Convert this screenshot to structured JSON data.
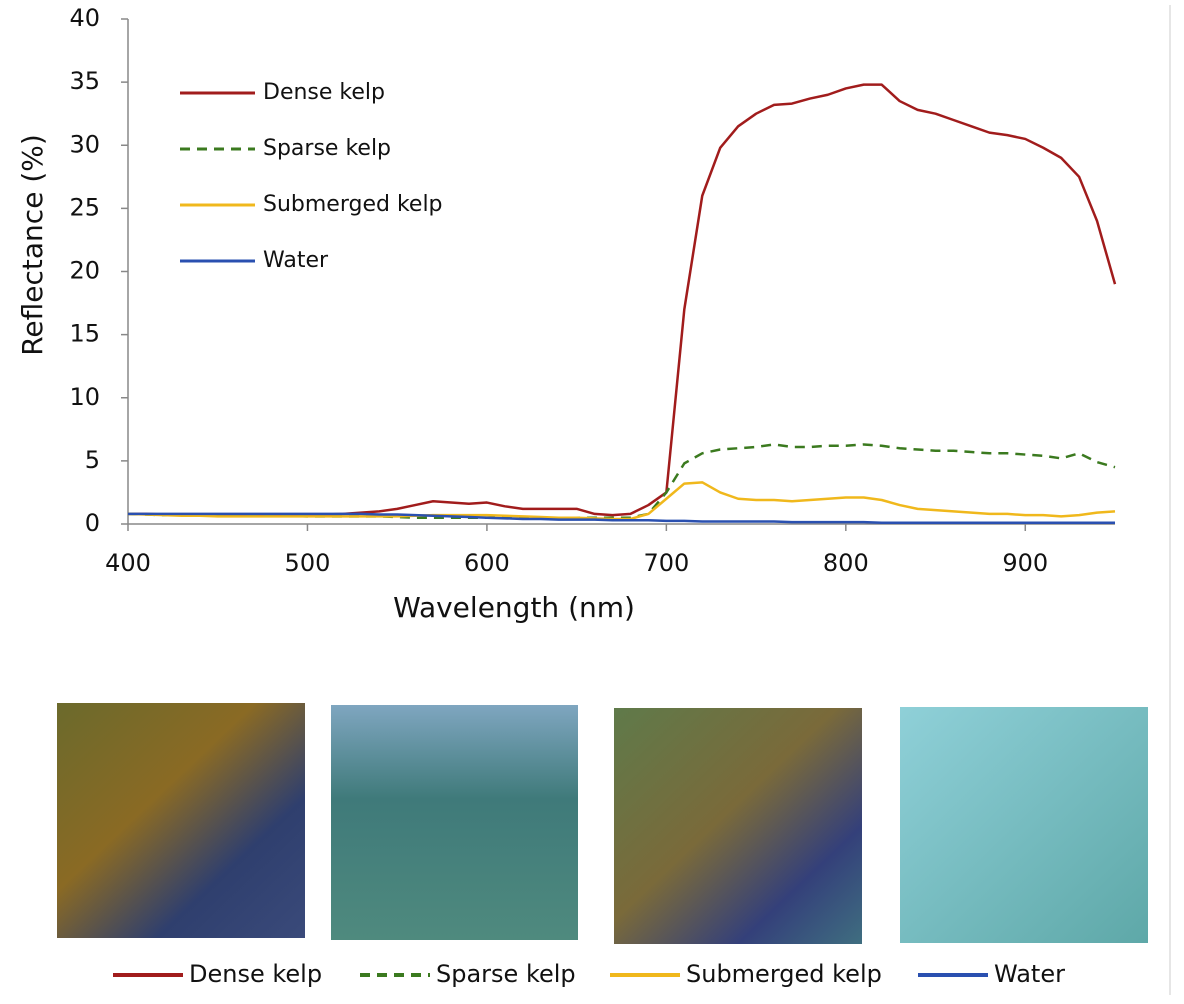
{
  "chart_data": {
    "type": "line",
    "x_label": "Wavelength (nm)",
    "y_label": "Reflectance (%)",
    "x": [
      400,
      410,
      420,
      430,
      440,
      450,
      460,
      470,
      480,
      490,
      500,
      510,
      520,
      530,
      540,
      550,
      560,
      570,
      580,
      590,
      600,
      610,
      620,
      630,
      640,
      650,
      660,
      670,
      680,
      690,
      700,
      710,
      720,
      730,
      740,
      750,
      760,
      770,
      780,
      790,
      800,
      810,
      820,
      830,
      840,
      850,
      860,
      870,
      880,
      890,
      900,
      910,
      920,
      930,
      940,
      950
    ],
    "series": [
      {
        "name": "Dense kelp",
        "color": "#a11c1c",
        "line_style": "solid",
        "values": [
          0.8,
          0.8,
          0.75,
          0.75,
          0.75,
          0.75,
          0.75,
          0.75,
          0.75,
          0.75,
          0.75,
          0.75,
          0.8,
          0.9,
          1.0,
          1.2,
          1.5,
          1.8,
          1.7,
          1.6,
          1.7,
          1.4,
          1.2,
          1.2,
          1.2,
          1.2,
          0.8,
          0.7,
          0.8,
          1.5,
          2.5,
          17,
          26,
          29.8,
          31.5,
          32.5,
          33.2,
          33.3,
          33.7,
          34,
          34.5,
          34.8,
          34.8,
          33.5,
          32.8,
          32.5,
          32,
          31.5,
          31,
          30.8,
          30.5,
          29.8,
          29,
          27.5,
          24,
          19
        ]
      },
      {
        "name": "Sparse kelp",
        "color": "#3b7a1f",
        "line_style": "dashed",
        "values": [
          0.8,
          0.75,
          0.7,
          0.7,
          0.7,
          0.7,
          0.7,
          0.65,
          0.65,
          0.65,
          0.6,
          0.6,
          0.6,
          0.6,
          0.6,
          0.55,
          0.5,
          0.5,
          0.5,
          0.5,
          0.5,
          0.5,
          0.5,
          0.5,
          0.5,
          0.5,
          0.5,
          0.5,
          0.5,
          0.8,
          2.5,
          4.8,
          5.6,
          5.9,
          6,
          6.1,
          6.3,
          6.1,
          6.1,
          6.2,
          6.2,
          6.3,
          6.2,
          6,
          5.9,
          5.8,
          5.8,
          5.7,
          5.6,
          5.6,
          5.5,
          5.4,
          5.2,
          5.6,
          4.9,
          4.5
        ]
      },
      {
        "name": "Submerged kelp",
        "color": "#f0b81c",
        "line_style": "solid",
        "values": [
          0.8,
          0.75,
          0.7,
          0.65,
          0.65,
          0.6,
          0.6,
          0.6,
          0.6,
          0.6,
          0.6,
          0.6,
          0.6,
          0.6,
          0.6,
          0.6,
          0.65,
          0.7,
          0.7,
          0.7,
          0.7,
          0.65,
          0.6,
          0.55,
          0.5,
          0.5,
          0.45,
          0.4,
          0.4,
          0.8,
          2,
          3.2,
          3.3,
          2.5,
          2,
          1.9,
          1.9,
          1.8,
          1.9,
          2,
          2.1,
          2.1,
          1.9,
          1.5,
          1.2,
          1.1,
          1,
          0.9,
          0.8,
          0.8,
          0.7,
          0.7,
          0.6,
          0.7,
          0.9,
          1
        ]
      },
      {
        "name": "Water",
        "color": "#2a50b0",
        "line_style": "solid",
        "values": [
          0.8,
          0.8,
          0.8,
          0.8,
          0.8,
          0.8,
          0.8,
          0.8,
          0.8,
          0.8,
          0.8,
          0.8,
          0.8,
          0.8,
          0.75,
          0.75,
          0.7,
          0.65,
          0.6,
          0.55,
          0.5,
          0.45,
          0.4,
          0.4,
          0.35,
          0.35,
          0.35,
          0.3,
          0.3,
          0.3,
          0.25,
          0.25,
          0.2,
          0.2,
          0.2,
          0.2,
          0.2,
          0.15,
          0.15,
          0.15,
          0.15,
          0.15,
          0.1,
          0.1,
          0.1,
          0.1,
          0.1,
          0.1,
          0.1,
          0.1,
          0.1,
          0.1,
          0.1,
          0.1,
          0.1,
          0.1
        ]
      }
    ],
    "xlim": [
      400,
      950
    ],
    "xticks": [
      400,
      500,
      600,
      700,
      800,
      900
    ],
    "ylim": [
      0,
      40
    ],
    "yticks": [
      0,
      5,
      10,
      15,
      20,
      25,
      30,
      35,
      40
    ],
    "grid": false,
    "legend": "upper left"
  }
}
